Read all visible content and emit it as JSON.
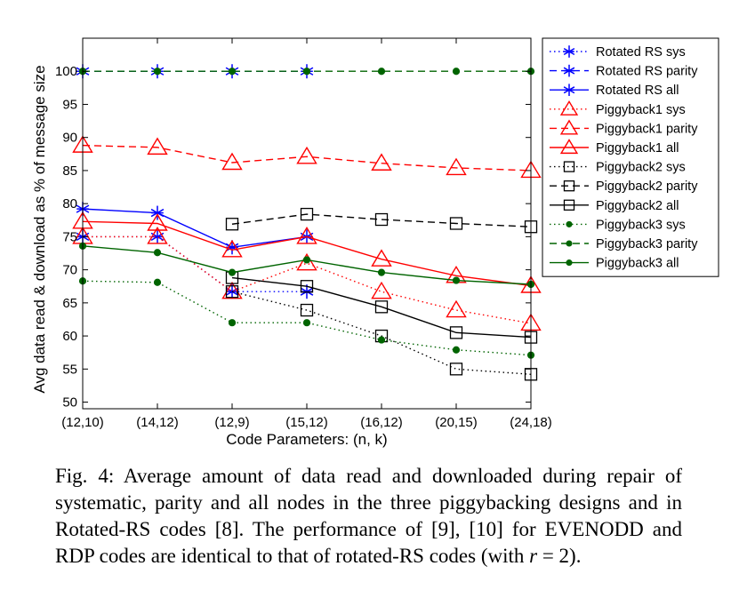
{
  "chart_data": {
    "type": "line",
    "xlabel": "Code Parameters: (n, k)",
    "ylabel": "Avg data read & download as % of message size",
    "categories": [
      "(12,10)",
      "(14,12)",
      "(12,9)",
      "(15,12)",
      "(16,12)",
      "(20,15)",
      "(24,18)"
    ],
    "ylim": [
      49,
      105
    ],
    "yticks": [
      50,
      55,
      60,
      65,
      70,
      75,
      80,
      85,
      90,
      95,
      100
    ],
    "legend_position": "right-outside",
    "series": [
      {
        "name": "Rotated RS sys",
        "color": "#0000ff",
        "line": "dotted",
        "marker": "asterisk",
        "values": [
          75,
          75,
          66.7,
          66.7,
          null,
          null,
          null
        ]
      },
      {
        "name": "Rotated RS parity",
        "color": "#0000ff",
        "line": "dashed",
        "marker": "asterisk",
        "values": [
          100,
          100,
          100,
          100,
          null,
          null,
          null
        ]
      },
      {
        "name": "Rotated RS all",
        "color": "#0000ff",
        "line": "solid",
        "marker": "asterisk",
        "values": [
          79.2,
          78.6,
          73.4,
          75,
          null,
          null,
          null
        ]
      },
      {
        "name": "Piggyback1 sys",
        "color": "#ff0000",
        "line": "dotted",
        "marker": "triangle",
        "values": [
          75,
          75,
          66.7,
          71,
          66.7,
          63.9,
          61.9
        ]
      },
      {
        "name": "Piggyback1 parity",
        "color": "#ff0000",
        "line": "dashed",
        "marker": "triangle",
        "values": [
          88.8,
          88.5,
          86.2,
          87.1,
          86.1,
          85.4,
          85
        ]
      },
      {
        "name": "Piggyback1 all",
        "color": "#ff0000",
        "line": "solid",
        "marker": "triangle",
        "values": [
          77.3,
          77,
          73,
          75,
          71.6,
          69.1,
          67.6
        ]
      },
      {
        "name": "Piggyback2 sys",
        "color": "#000000",
        "line": "dotted",
        "marker": "square",
        "values": [
          null,
          null,
          66.7,
          63.9,
          60,
          55,
          54.2
        ]
      },
      {
        "name": "Piggyback2 parity",
        "color": "#000000",
        "line": "dashed",
        "marker": "square",
        "values": [
          null,
          null,
          76.9,
          78.4,
          77.6,
          77,
          76.5
        ]
      },
      {
        "name": "Piggyback2 all",
        "color": "#000000",
        "line": "solid",
        "marker": "square",
        "values": [
          null,
          null,
          68.8,
          67.5,
          64.4,
          60.5,
          59.8
        ]
      },
      {
        "name": "Piggyback3 sys",
        "color": "#006400",
        "line": "dotted",
        "marker": "dot",
        "values": [
          68.3,
          68.1,
          62,
          62,
          59.4,
          57.9,
          57.1
        ]
      },
      {
        "name": "Piggyback3 parity",
        "color": "#006400",
        "line": "dashed",
        "marker": "dot",
        "values": [
          100,
          100,
          100,
          100,
          100,
          100,
          100
        ]
      },
      {
        "name": "Piggyback3 all",
        "color": "#006400",
        "line": "solid",
        "marker": "dot",
        "values": [
          73.6,
          72.6,
          69.6,
          71.5,
          69.6,
          68.4,
          67.8
        ]
      }
    ]
  },
  "caption": {
    "prefix": "Fig. 4: Average amount of data read and downloaded during repair of systematic, parity and all nodes in the three piggybacking designs and in Rotated-RS codes [8]. The performance of [9], [10] for EVENODD and RDP codes are identical to that of rotated-RS codes (with ",
    "math": "r",
    "suffix": " = 2)."
  }
}
